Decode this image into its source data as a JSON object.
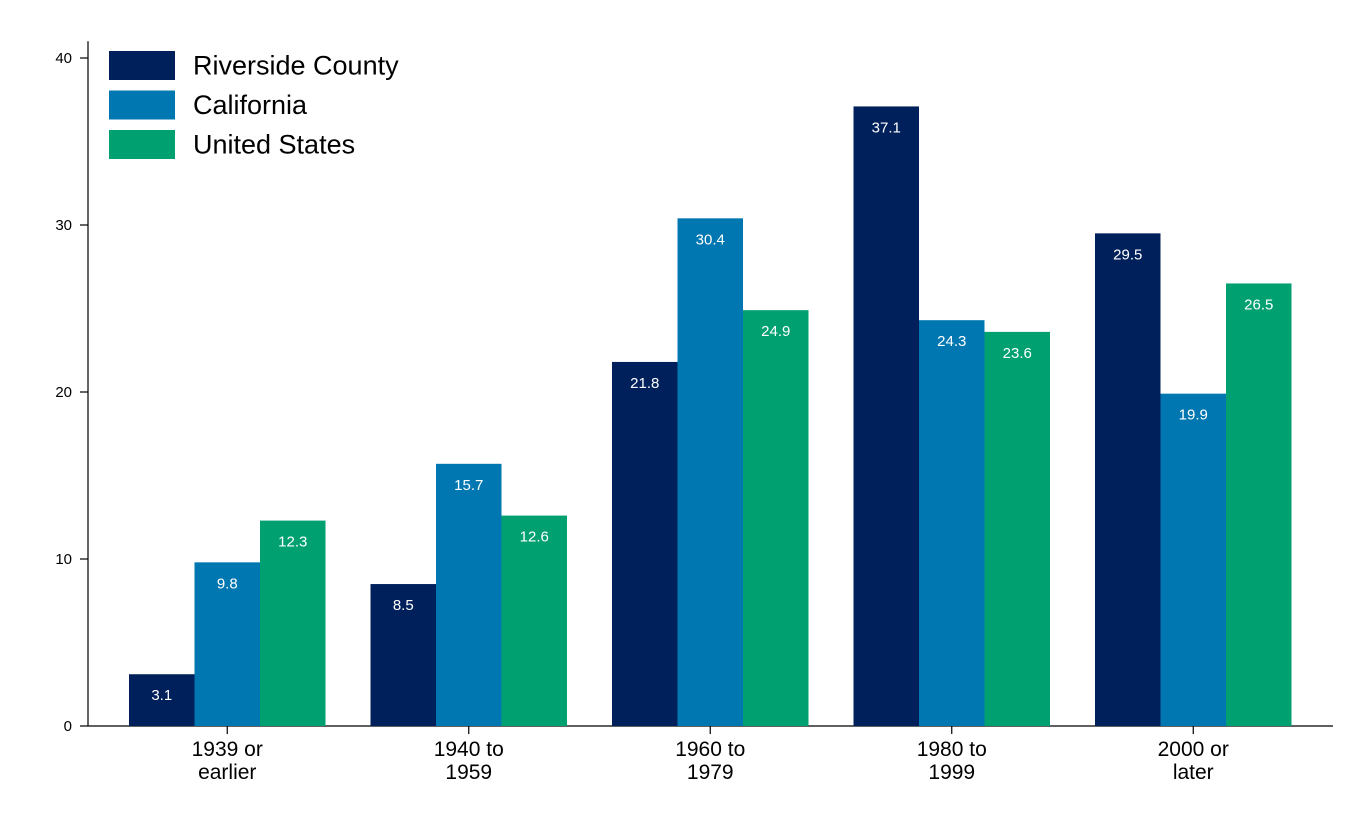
{
  "chart_data": {
    "type": "bar",
    "title": "",
    "xlabel": "",
    "ylabel": "",
    "categories": [
      [
        "1939 or",
        "earlier"
      ],
      [
        "1940 to",
        "1959"
      ],
      [
        "1960 to",
        "1979"
      ],
      [
        "1980 to",
        "1999"
      ],
      [
        "2000 or",
        "later"
      ]
    ],
    "series": [
      {
        "name": "Riverside County",
        "color": "#00205b",
        "values": [
          3.1,
          8.5,
          21.8,
          37.1,
          29.5
        ]
      },
      {
        "name": "California",
        "color": "#0077b1",
        "values": [
          9.8,
          15.7,
          30.4,
          24.3,
          19.9
        ]
      },
      {
        "name": "United States",
        "color": "#00a071",
        "values": [
          12.3,
          12.6,
          24.9,
          23.6,
          26.5
        ]
      }
    ],
    "ylim": [
      0,
      41
    ],
    "yticks": [
      0,
      10,
      20,
      30,
      40
    ],
    "data_labels": true,
    "grid": false,
    "legend_position": "top-left"
  }
}
